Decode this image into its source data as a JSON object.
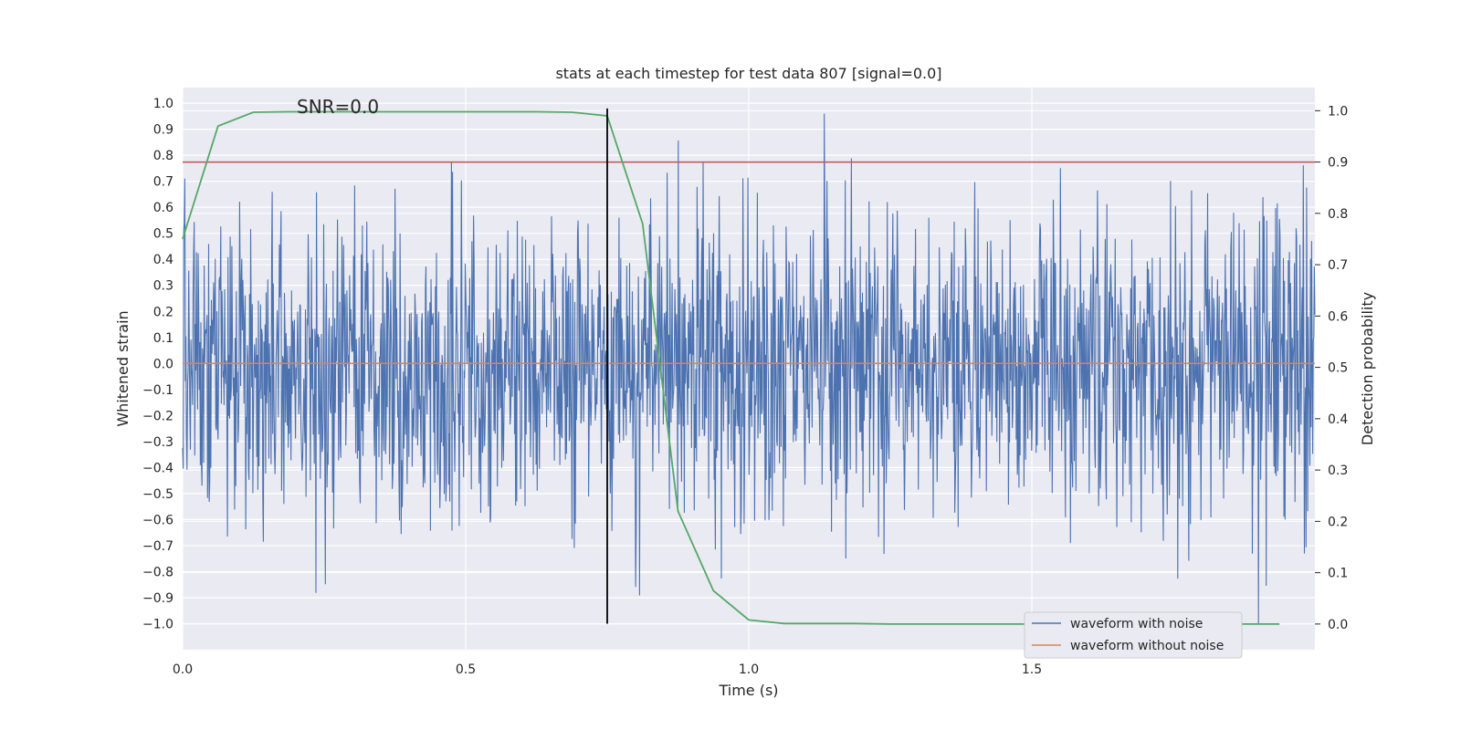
{
  "chart_data": {
    "type": "line",
    "title": "stats at each timestep for test data 807 [signal=0.0]",
    "annotation": "SNR=0.0",
    "xlabel": "Time (s)",
    "ylabel": "Whitened strain",
    "y2label": "Detection probability",
    "xlim": [
      0.0,
      2.0
    ],
    "ylim": [
      -1.1,
      1.06
    ],
    "y2lim": [
      -0.05,
      1.045
    ],
    "x_ticks": [
      0.0,
      0.5,
      1.0,
      1.5
    ],
    "x_tick_labels": [
      "0.0",
      "0.5",
      "1.0",
      "1.5"
    ],
    "y_ticks": [
      -1.0,
      -0.9,
      -0.8,
      -0.7,
      -0.6,
      -0.5,
      -0.4,
      -0.3,
      -0.2,
      -0.1,
      0.0,
      0.1,
      0.2,
      0.3,
      0.4,
      0.5,
      0.6,
      0.7,
      0.8,
      0.9,
      1.0
    ],
    "y_tick_labels": [
      "−1.0",
      "−0.9",
      "−0.8",
      "−0.7",
      "−0.6",
      "−0.5",
      "−0.4",
      "−0.3",
      "−0.2",
      "−0.1",
      "0.0",
      "0.1",
      "0.2",
      "0.3",
      "0.4",
      "0.5",
      "0.6",
      "0.7",
      "0.8",
      "0.9",
      "1.0"
    ],
    "y2_ticks": [
      0.0,
      0.1,
      0.2,
      0.3,
      0.4,
      0.5,
      0.6,
      0.7,
      0.8,
      0.9,
      1.0
    ],
    "y2_tick_labels": [
      "0.0",
      "0.1",
      "0.2",
      "0.3",
      "0.4",
      "0.5",
      "0.6",
      "0.7",
      "0.8",
      "0.9",
      "1.0"
    ],
    "grid": true,
    "legend_position": "bottom-right",
    "series": [
      {
        "name": "waveform with noise",
        "color": "#4c72b0",
        "axis": "left",
        "description": "noisy whitened strain sampled over 0-2 s, values within about -1.0 to 0.96",
        "t_start": 0.0,
        "t_end": 2.0,
        "n_samples": 2048,
        "amplitude_std": 0.3,
        "clip": [
          -1.0,
          0.96
        ],
        "seed": 807
      },
      {
        "name": "waveform without noise",
        "color": "#dd8452",
        "axis": "left",
        "x": [
          0.0,
          2.0
        ],
        "y": [
          0.0,
          0.0
        ]
      },
      {
        "name": "detection probability",
        "color": "#55a868",
        "axis": "right",
        "x": [
          0.0,
          0.0625,
          0.125,
          0.1875,
          0.25,
          0.3125,
          0.375,
          0.4375,
          0.5,
          0.5625,
          0.625,
          0.6875,
          0.75,
          0.8125,
          0.875,
          0.9375,
          1.0,
          1.0625,
          1.125,
          1.1875,
          1.25,
          1.3125,
          1.375,
          1.4375,
          1.5,
          1.5625,
          1.625,
          1.6875,
          1.75,
          1.8125,
          1.875,
          1.9375
        ],
        "y": [
          0.75,
          0.97,
          0.997,
          0.998,
          0.998,
          0.998,
          0.998,
          0.998,
          0.998,
          0.998,
          0.998,
          0.997,
          0.99,
          0.78,
          0.22,
          0.065,
          0.008,
          0.001,
          0.001,
          0.001,
          0.0,
          0.0,
          0.0,
          0.0,
          0.0,
          0.0,
          0.0,
          0.0,
          0.0,
          0.0,
          0.0,
          0.0
        ]
      }
    ],
    "threshold_line": {
      "axis": "right",
      "value": 0.9,
      "color": "#c44e52"
    },
    "marker_line": {
      "x": 0.75,
      "y_range": [
        -1.0,
        0.98
      ],
      "color": "#000000"
    }
  }
}
